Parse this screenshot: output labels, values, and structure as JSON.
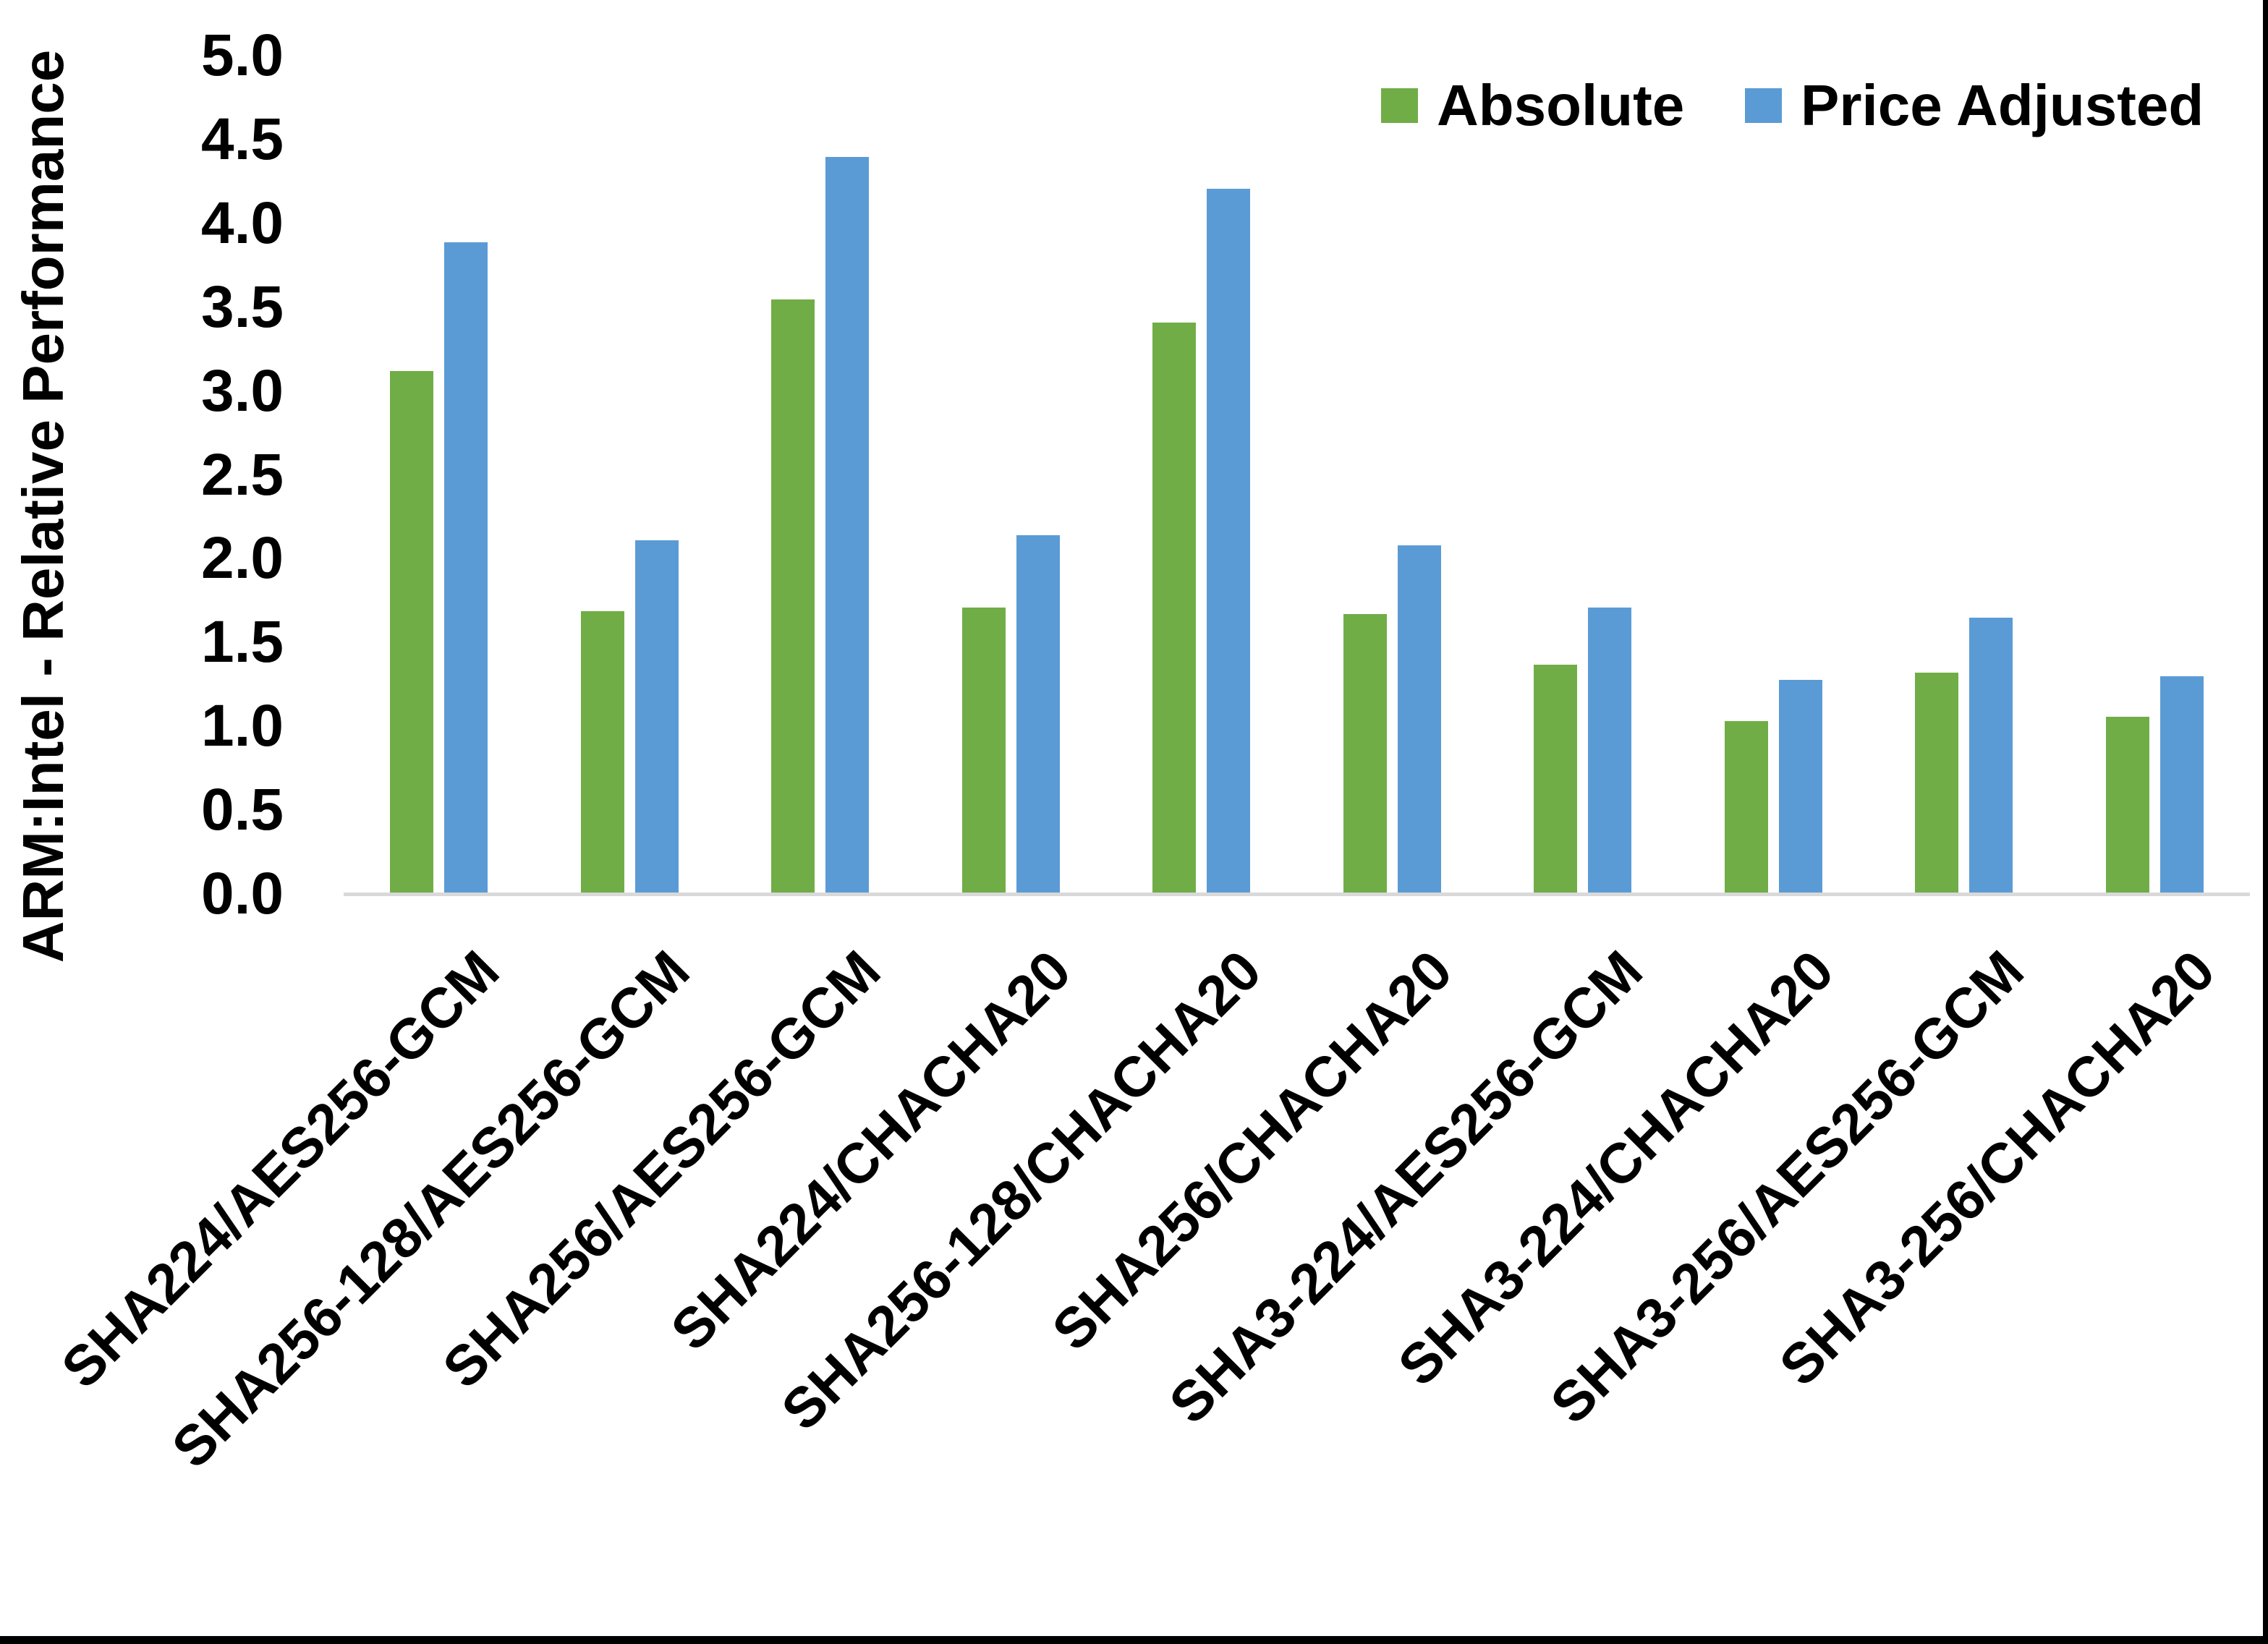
{
  "chart_data": {
    "type": "bar",
    "title": "",
    "xlabel": "",
    "ylabel": "ARM:Intel - Relative Performance",
    "ylim": [
      0,
      5
    ],
    "ytick_step": 0.5,
    "yticks": [
      "5.0",
      "4.5",
      "4.0",
      "3.5",
      "3.0",
      "2.5",
      "2.0",
      "1.5",
      "1.0",
      "0.5",
      "0.0"
    ],
    "grid": false,
    "legend_position": "top-right",
    "categories": [
      "SHA224/AES256-GCM",
      "SHA256-128/AES256-GCM",
      "SHA256/AES256-GCM",
      "SHA224/CHACHA20",
      "SHA256-128/CHACHA20",
      "SHA256/CHACHA20",
      "SHA3-224/AES256-GCM",
      "SHA3-224/CHACHA20",
      "SHA3-256/AES256-GCM",
      "SHA3-256/CHACHA20"
    ],
    "series": [
      {
        "name": "Absolute",
        "color": "#70AD47",
        "values": [
          3.12,
          1.69,
          3.55,
          1.71,
          3.41,
          1.67,
          1.37,
          1.03,
          1.32,
          1.06
        ]
      },
      {
        "name": "Price Adjusted",
        "color": "#5B9BD5",
        "values": [
          3.89,
          2.11,
          4.4,
          2.14,
          4.21,
          2.08,
          1.71,
          1.28,
          1.65,
          1.3
        ]
      }
    ]
  },
  "colors": {
    "axis_line": "#D9D9D9",
    "text": "#000000",
    "frame_border": "#000000",
    "background": "#FFFFFF"
  }
}
